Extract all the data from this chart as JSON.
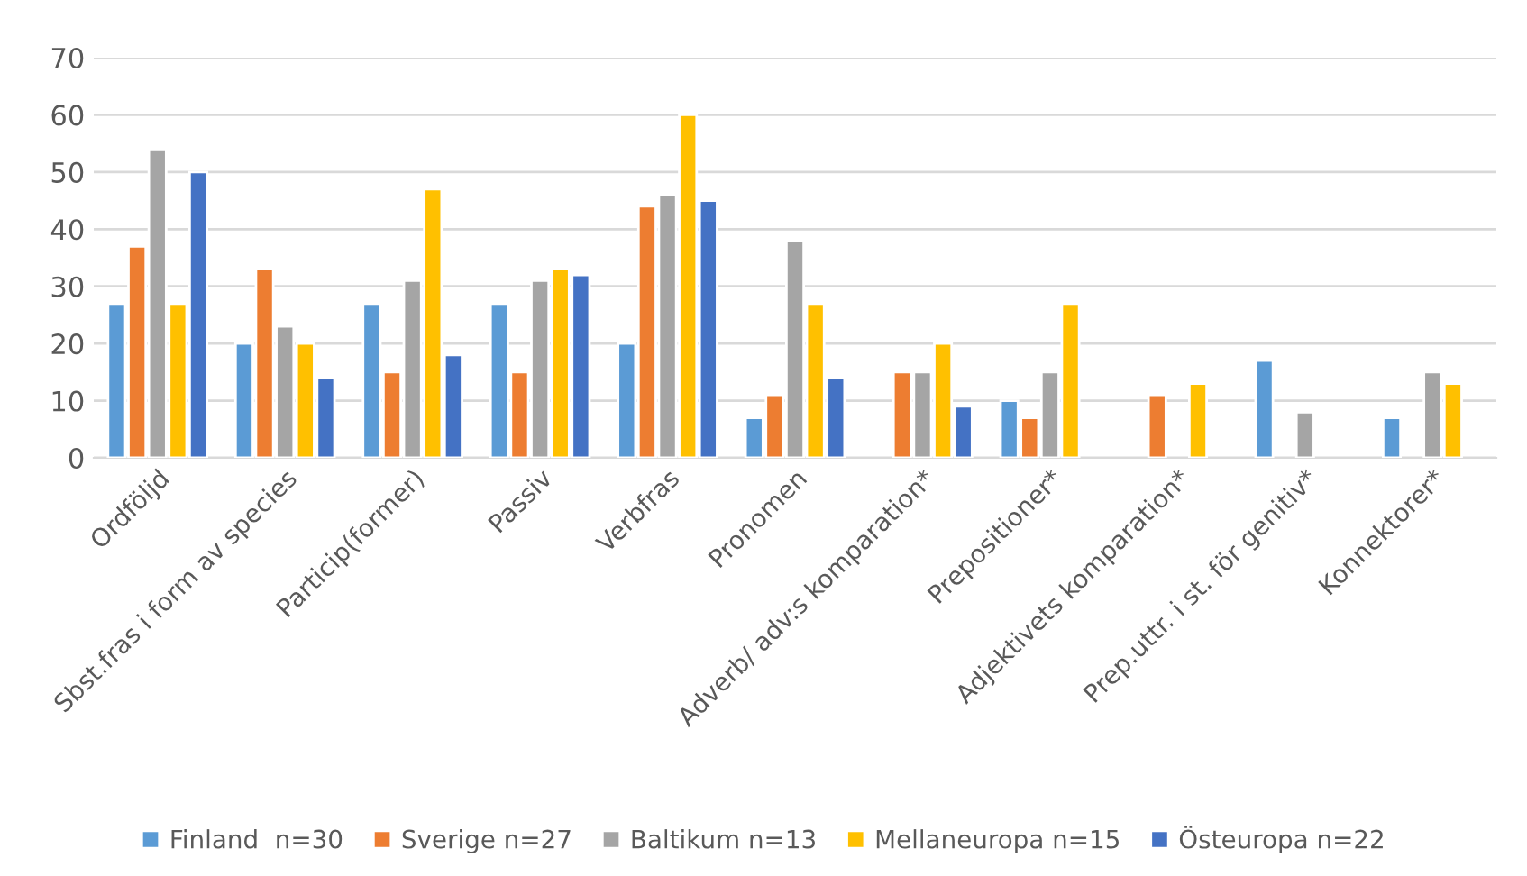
{
  "chart_data": {
    "type": "bar",
    "categories": [
      "Ordföljd",
      "Sbst.fras i form av species",
      "Particip(former)",
      "Passiv",
      "Verbfras",
      "Pronomen",
      "Adverb/ adv:s komparation*",
      "Prepositioner*",
      "Adjektivets komparation*",
      "Prep.uttr. i st. för genitiv*",
      "Konnektorer*"
    ],
    "series": [
      {
        "name": "Finland  n=30",
        "color": "#5b9bd5",
        "values": [
          27,
          20,
          27,
          27,
          20,
          7,
          null,
          10,
          null,
          17,
          7
        ]
      },
      {
        "name": "Sverige n=27",
        "color": "#ed7d31",
        "values": [
          37,
          33,
          15,
          15,
          44,
          11,
          15,
          7,
          11,
          null,
          null
        ]
      },
      {
        "name": "Baltikum n=13",
        "color": "#a5a5a5",
        "values": [
          54,
          23,
          31,
          31,
          46,
          38,
          15,
          15,
          null,
          8,
          15
        ]
      },
      {
        "name": "Mellaneuropa n=15",
        "color": "#ffc000",
        "values": [
          27,
          20,
          47,
          33,
          60,
          27,
          20,
          27,
          13,
          null,
          13
        ]
      },
      {
        "name": "Östeuropa n=22",
        "color": "#4472c4",
        "values": [
          50,
          14,
          18,
          32,
          45,
          14,
          9,
          null,
          null,
          null,
          null
        ]
      }
    ],
    "ylim": [
      0,
      70
    ],
    "yticks": [
      0,
      10,
      20,
      30,
      40,
      50,
      60,
      70
    ],
    "grid": "y",
    "legend": "bottom"
  }
}
